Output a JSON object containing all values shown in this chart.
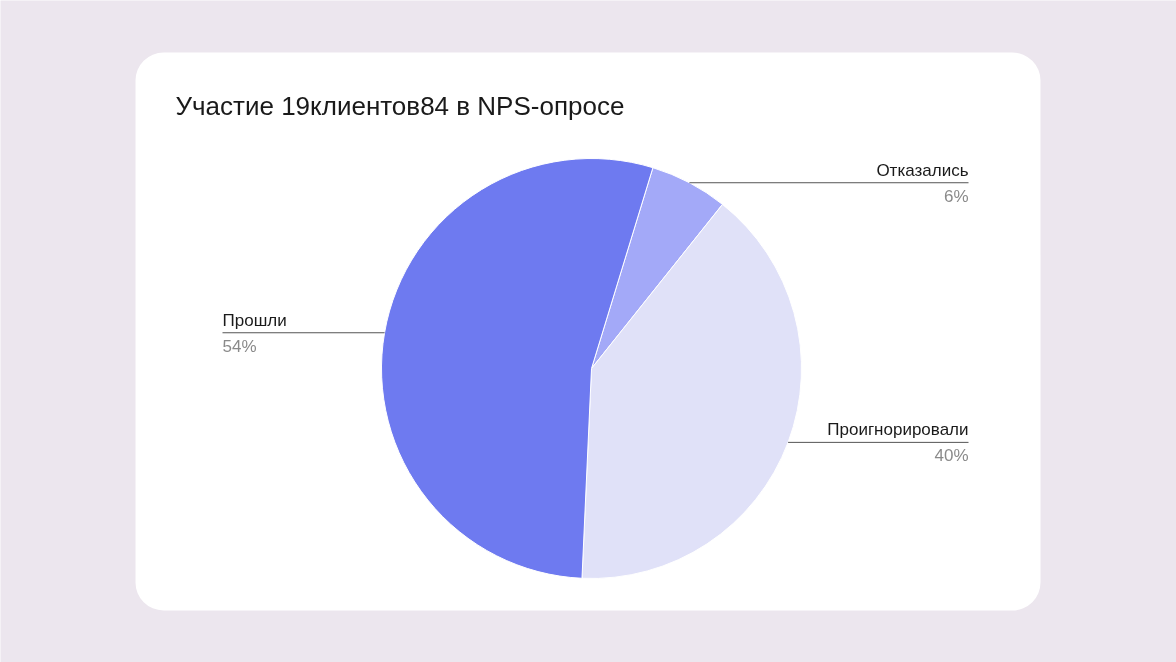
{
  "chart_data": {
    "type": "pie",
    "title": "Участие 19клиентов84 в NPS-опросе",
    "categories": [
      "Отказались",
      "Проигнорировали",
      "Прошли"
    ],
    "values": [
      6,
      40,
      54
    ],
    "value_labels": [
      "6%",
      "40%",
      "54%"
    ],
    "colors": [
      "#a3a9f8",
      "#e0e1f8",
      "#6e7af0"
    ]
  }
}
